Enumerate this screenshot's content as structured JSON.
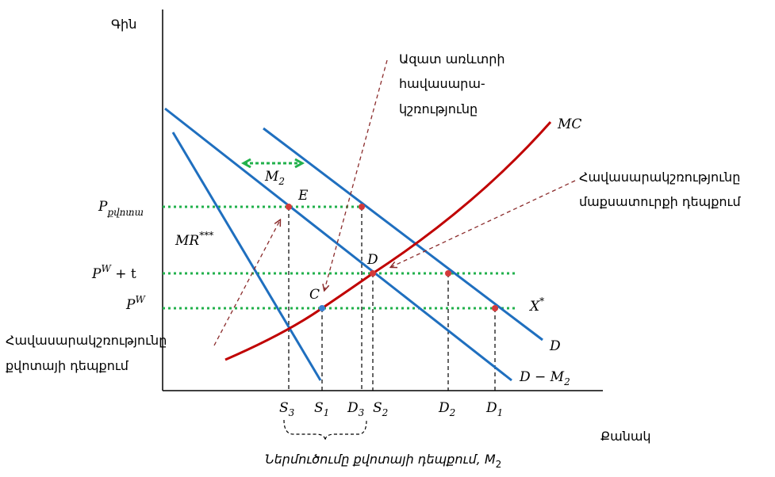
{
  "axes": {
    "y_label": "Գին",
    "x_label": "Քանակ"
  },
  "colors": {
    "line_blue": "#1f6fbf",
    "line_red": "#c00000",
    "dotted_green": "#22b14c",
    "arrow_brown": "#8b2c2c",
    "point_red": "#d43a3a",
    "point_blue": "#3a7fd0"
  },
  "curves": {
    "mc": "MC",
    "d": "D",
    "d_minus": "D − M",
    "d_minus_sub": "2",
    "mr": "MR",
    "mr_sup": "***",
    "xstar": "X",
    "xstar_sup": "*"
  },
  "price_levels": {
    "p_quota": "P",
    "p_quota_sub": "քվոտա",
    "pw_t": "P",
    "pw_t_sup": "W",
    "pw_t_suffix": " + t",
    "pw": "P",
    "pw_sup": "W"
  },
  "points": {
    "e": "E",
    "d": "D",
    "c": "C"
  },
  "m2_label": {
    "base": "M",
    "sub": "2"
  },
  "annotations": {
    "free_trade_1": "Ազատ առևտրի",
    "free_trade_2": "հավասարա-",
    "free_trade_3": "կշռությունը",
    "monopoly_1": "Հավասարակշռությունը",
    "monopoly_2": "մաքսատուրքի դեպքում",
    "quota_1": "Հավասարակշռությունը",
    "quota_2": "քվոտայի դեպքում",
    "imports": "Ներմուծումը քվոտայի դեպքում, M",
    "imports_sub": "2"
  },
  "x_ticks": [
    {
      "base": "S",
      "sub": "3"
    },
    {
      "base": "S",
      "sub": "1"
    },
    {
      "base": "D",
      "sub": "3"
    },
    {
      "base": "S",
      "sub": "2"
    },
    {
      "base": "D",
      "sub": "2"
    },
    {
      "base": "D",
      "sub": "1"
    }
  ]
}
